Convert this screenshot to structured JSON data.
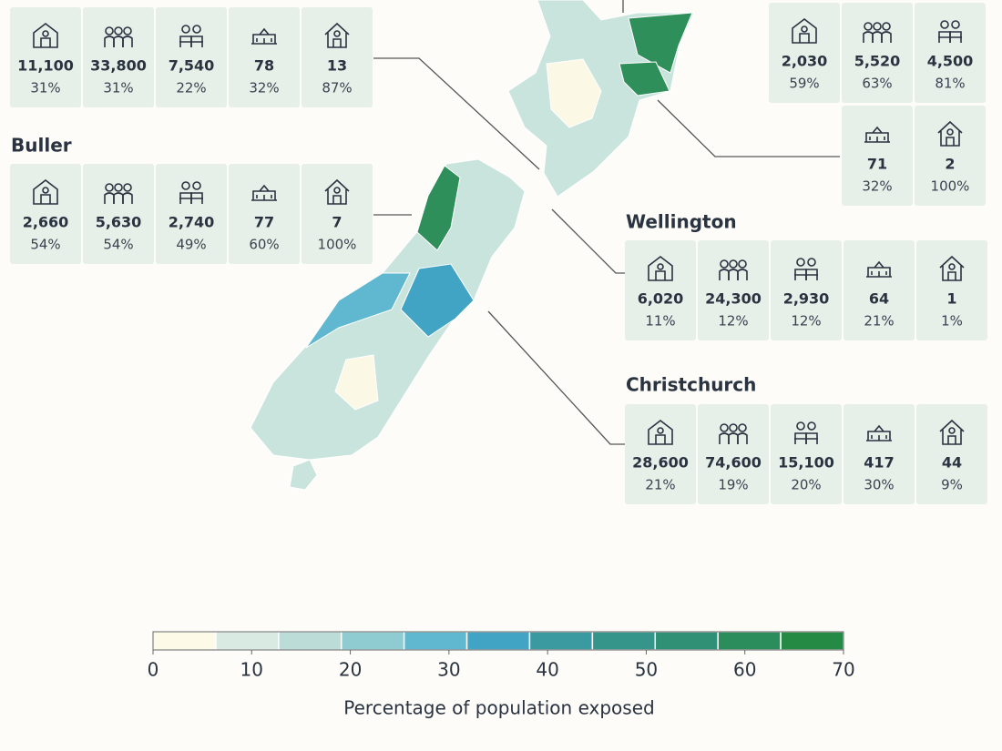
{
  "panels": [
    {
      "cells": [
        {
          "value": "11,100",
          "percent": "31%"
        },
        {
          "value": "33,800",
          "percent": "31%"
        },
        {
          "value": "7,540",
          "percent": "22%"
        },
        {
          "value": "78",
          "percent": "32%"
        },
        {
          "value": "13",
          "percent": "87%"
        }
      ]
    },
    {
      "cells": [
        {
          "value": "2,030",
          "percent": "59%"
        },
        {
          "value": "5,520",
          "percent": "63%"
        },
        {
          "value": "4,500",
          "percent": "81%"
        },
        {
          "value": "71",
          "percent": "32%"
        },
        {
          "value": "2",
          "percent": "100%"
        }
      ]
    },
    {
      "title": "Buller",
      "cells": [
        {
          "value": "2,660",
          "percent": "54%"
        },
        {
          "value": "5,630",
          "percent": "54%"
        },
        {
          "value": "2,740",
          "percent": "49%"
        },
        {
          "value": "77",
          "percent": "60%"
        },
        {
          "value": "7",
          "percent": "100%"
        }
      ]
    },
    {
      "title": "Wellington",
      "cells": [
        {
          "value": "6,020",
          "percent": "11%"
        },
        {
          "value": "24,300",
          "percent": "12%"
        },
        {
          "value": "2,930",
          "percent": "12%"
        },
        {
          "value": "64",
          "percent": "21%"
        },
        {
          "value": "1",
          "percent": "1%"
        }
      ]
    },
    {
      "title": "Christchurch",
      "cells": [
        {
          "value": "28,600",
          "percent": "21%"
        },
        {
          "value": "74,600",
          "percent": "19%"
        },
        {
          "value": "15,100",
          "percent": "20%"
        },
        {
          "value": "417",
          "percent": "30%"
        },
        {
          "value": "44",
          "percent": "9%"
        }
      ]
    }
  ],
  "legend": {
    "label": "Percentage of population exposed",
    "lim": [
      0,
      70
    ],
    "ticks": [
      0,
      10,
      20,
      30,
      40,
      50,
      60,
      70
    ],
    "colors": [
      "#fdfbe8",
      "#d9eae3",
      "#bcdcd8",
      "#8fccd1",
      "#5fb8cf",
      "#42a4c4",
      "#3a9aa0",
      "#35958b",
      "#309075",
      "#2b8c5c",
      "#248a44"
    ]
  }
}
